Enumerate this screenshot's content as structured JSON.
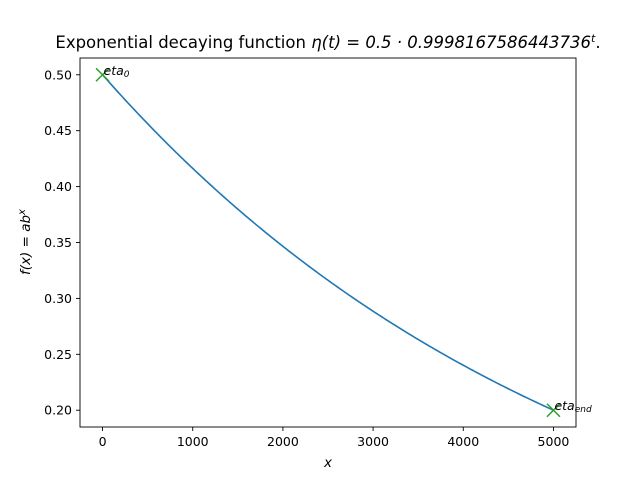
{
  "chart_data": {
    "type": "line",
    "title_prefix": "Exponential decaying function ",
    "title_formula": "η(t) = 0.5 · 0.9998167586443736",
    "title_exp": "t",
    "title_suffix": ".",
    "xlabel": "x",
    "ylabel": "f(x) = ab",
    "ylabel_exp": "x",
    "function": {
      "a": 0.5,
      "b": 0.9998167586443736
    },
    "series": [
      {
        "x": [
          0,
          250,
          500,
          750,
          1000,
          1250,
          1500,
          1750,
          2000,
          2250,
          2500,
          2750,
          3000,
          3250,
          3500,
          3750,
          4000,
          4250,
          4500,
          4750,
          5000
        ],
        "values": [
          0.5,
          0.4774,
          0.4558,
          0.4351,
          0.4163,
          0.3968,
          0.3788,
          0.3617,
          0.3466,
          0.3297,
          0.3162,
          0.3006,
          0.2884,
          0.2739,
          0.2631,
          0.2499,
          0.2402,
          0.2279,
          0.2189,
          0.2077,
          0.2
        ],
        "color": "#1f77b4"
      }
    ],
    "markers": [
      {
        "x": 0,
        "y": 0.5,
        "label": "eta",
        "sub": "0",
        "color": "#2ca02c"
      },
      {
        "x": 5000,
        "y": 0.2,
        "label": "eta",
        "sub": "end",
        "color": "#2ca02c"
      }
    ],
    "xlim": [
      -250,
      5250
    ],
    "ylim": [
      0.185,
      0.515
    ],
    "xticks": [
      0,
      1000,
      2000,
      3000,
      4000,
      5000
    ],
    "xtick_labels": [
      "0",
      "1000",
      "2000",
      "3000",
      "4000",
      "5000"
    ],
    "yticks": [
      0.2,
      0.25,
      0.3,
      0.35,
      0.4,
      0.45,
      0.5
    ],
    "ytick_labels": [
      "0.20",
      "0.25",
      "0.30",
      "0.35",
      "0.40",
      "0.45",
      "0.50"
    ],
    "grid": false,
    "legend": "none"
  }
}
